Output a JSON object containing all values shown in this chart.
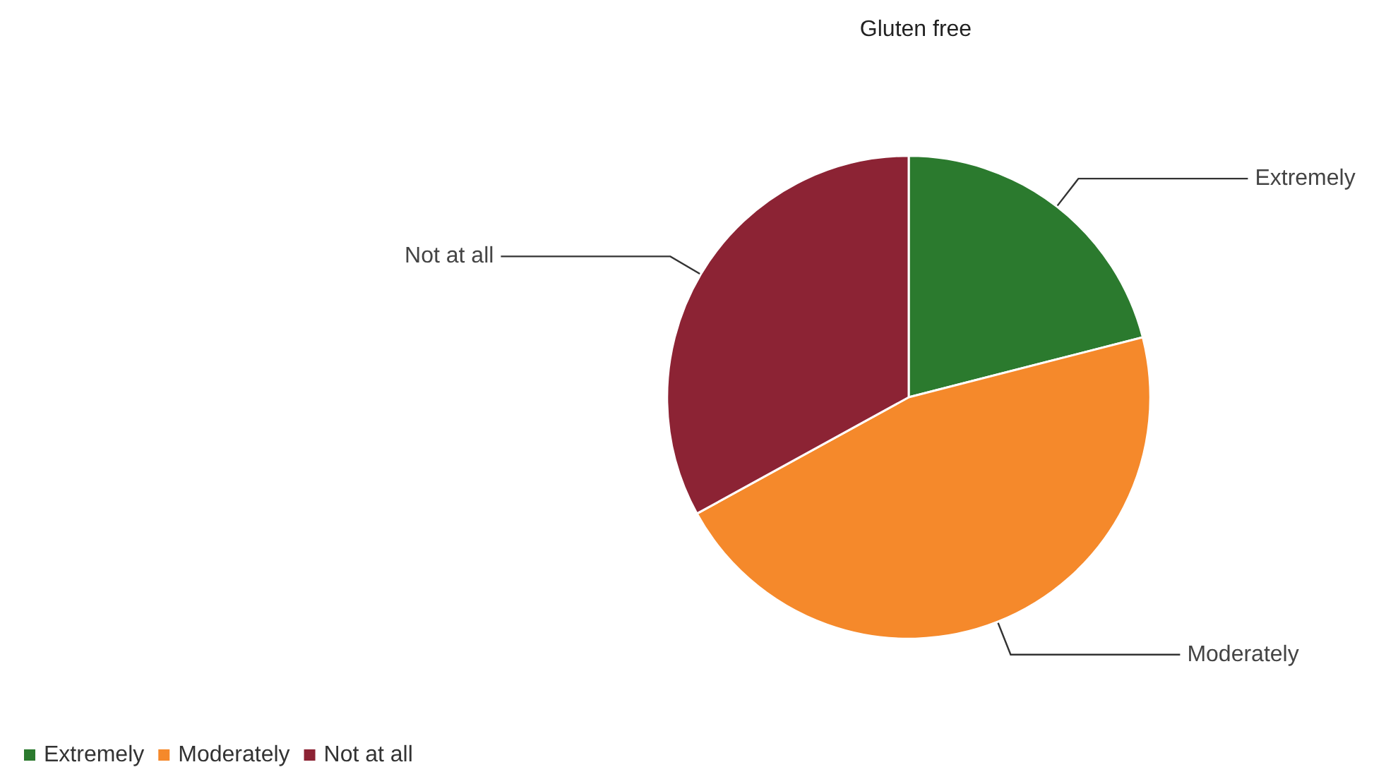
{
  "chart_data": {
    "type": "pie",
    "title": "Gluten free",
    "categories": [
      "Extremely",
      "Moderately",
      "Not at all"
    ],
    "values": [
      21,
      46,
      33
    ],
    "colors": [
      "#2b7a2e",
      "#f5892b",
      "#8c2334"
    ],
    "legend": "bottom left"
  }
}
